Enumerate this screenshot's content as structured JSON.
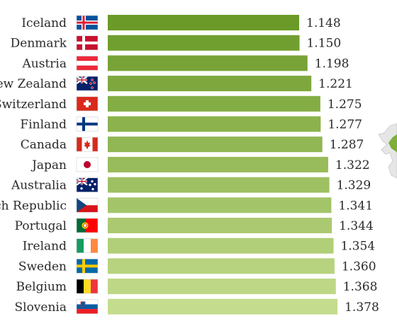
{
  "chart_data": {
    "type": "bar",
    "orientation": "horizontal",
    "categories": [
      "Iceland",
      "Denmark",
      "Austria",
      "New Zealand",
      "Switzerland",
      "Finland",
      "Canada",
      "Japan",
      "Australia",
      "Czech Republic",
      "Portugal",
      "Ireland",
      "Sweden",
      "Belgium",
      "Slovenia"
    ],
    "values": [
      1.148,
      1.15,
      1.198,
      1.221,
      1.275,
      1.277,
      1.287,
      1.322,
      1.329,
      1.341,
      1.344,
      1.354,
      1.36,
      1.368,
      1.378
    ],
    "value_labels": [
      "1.148",
      "1.150",
      "1.198",
      "1.221",
      "1.275",
      "1.277",
      "1.287",
      "1.322",
      "1.329",
      "1.341",
      "1.344",
      "1.354",
      "1.360",
      "1.368",
      "1.378"
    ],
    "flags": [
      "iceland",
      "denmark",
      "austria",
      "new-zealand",
      "switzerland",
      "finland",
      "canada",
      "japan",
      "australia",
      "czech-republic",
      "portugal",
      "ireland",
      "sweden",
      "belgium",
      "slovenia"
    ],
    "bar_color_start": "#6b9a28",
    "bar_color_end": "#c4dc8e",
    "grid": false,
    "legend": "none"
  }
}
